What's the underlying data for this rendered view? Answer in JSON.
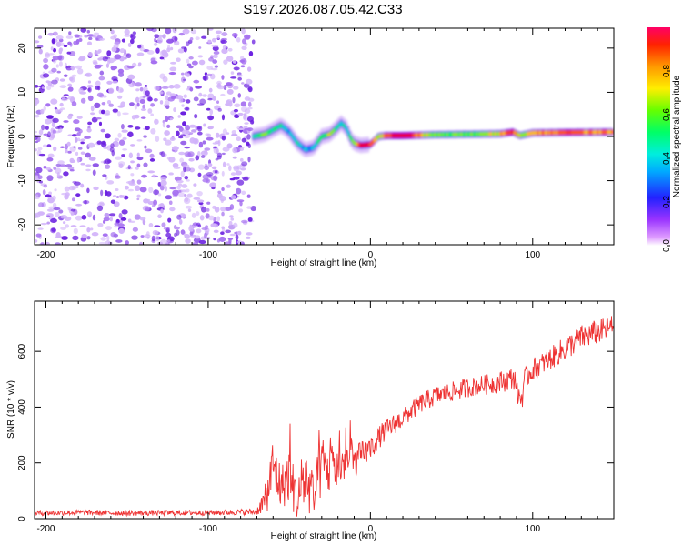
{
  "title": "S197.2026.087.05.42.C33",
  "colors": {
    "snr_line": "#ee3333",
    "scatter_light": "#d2b4fa",
    "scatter_mid": "#a36cf0",
    "scatter_dark": "#6a1fe0",
    "band_colormap": [
      "#cc44ff",
      "#5500ee",
      "#0066ff",
      "#00ccdd",
      "#00ee66",
      "#88ee00",
      "#ffbb00",
      "#ff5500",
      "#ee0033"
    ]
  },
  "chart_data": [
    {
      "type": "heatmap",
      "name": "spectrogram",
      "xlabel": "Height of straight line (km)",
      "ylabel": "Frequency (Hz)",
      "xlim": [
        -207,
        150
      ],
      "ylim": [
        -24.5,
        24.5
      ],
      "xticks": [
        -200,
        -100,
        0,
        100
      ],
      "yticks": [
        -20,
        -10,
        0,
        10,
        20
      ],
      "noise_region_x": [
        -207,
        -72
      ],
      "ridge": {
        "x": [
          -72,
          -65,
          -60,
          -55,
          -50,
          -45,
          -40,
          -35,
          -30,
          -25,
          -22,
          -18,
          -15,
          -12,
          -10,
          -6,
          0,
          5,
          10,
          20,
          40,
          60,
          80,
          88,
          92,
          100,
          120,
          150
        ],
        "freq": [
          0,
          0.5,
          1.5,
          2.5,
          1.0,
          -1.5,
          -3.0,
          -2.5,
          0,
          0.5,
          1.5,
          3.0,
          2.0,
          -0.5,
          -1.5,
          -2.0,
          -1.8,
          0,
          0.2,
          0.2,
          0.4,
          0.5,
          0.6,
          1.0,
          0.2,
          0.8,
          0.9,
          1.0
        ],
        "amplitude": [
          0.45,
          0.55,
          0.5,
          0.45,
          0.4,
          0.4,
          0.35,
          0.35,
          0.5,
          0.7,
          0.5,
          0.4,
          0.45,
          0.5,
          0.6,
          0.9,
          0.95,
          0.6,
          0.85,
          1.0,
          0.55,
          0.55,
          0.7,
          0.9,
          0.6,
          0.75,
          0.85,
          0.75
        ]
      }
    },
    {
      "type": "colorbar",
      "name": "colorbar",
      "label": "Normalized spectral amplitude",
      "range": [
        0,
        1
      ],
      "ticks": [
        0.0,
        0.2,
        0.4,
        0.6,
        0.8
      ],
      "tick_labels": [
        "0.0",
        "0.2",
        "0.4",
        "0.6",
        "0.8"
      ]
    },
    {
      "type": "line",
      "name": "snr",
      "xlabel": "Height of straight line (km)",
      "ylabel": "SNR (10 * v/v)",
      "xlim": [
        -207,
        150
      ],
      "ylim": [
        0,
        780
      ],
      "xticks": [
        -200,
        -100,
        0,
        100
      ],
      "yticks": [
        0,
        200,
        400,
        600
      ],
      "series": [
        {
          "name": "SNR",
          "x": [
            -207,
            -180,
            -150,
            -120,
            -90,
            -70,
            -64,
            -60,
            -55,
            -50,
            -45,
            -40,
            -35,
            -30,
            -25,
            -20,
            -15,
            -10,
            -5,
            0,
            5,
            10,
            20,
            30,
            40,
            50,
            60,
            70,
            80,
            88,
            93,
            95,
            100,
            110,
            120,
            130,
            140,
            150
          ],
          "y": [
            20,
            22,
            20,
            21,
            22,
            25,
            80,
            190,
            110,
            160,
            60,
            150,
            70,
            190,
            170,
            180,
            210,
            200,
            230,
            250,
            290,
            320,
            360,
            410,
            440,
            455,
            470,
            480,
            490,
            505,
            470,
            500,
            535,
            570,
            610,
            650,
            670,
            690
          ],
          "noise": [
            10,
            10,
            10,
            10,
            10,
            12,
            60,
            110,
            80,
            100,
            80,
            110,
            90,
            110,
            90,
            80,
            70,
            60,
            50,
            45,
            40,
            40,
            35,
            35,
            35,
            35,
            35,
            35,
            40,
            40,
            40,
            40,
            40,
            40,
            45,
            45,
            45,
            45
          ]
        }
      ]
    }
  ]
}
